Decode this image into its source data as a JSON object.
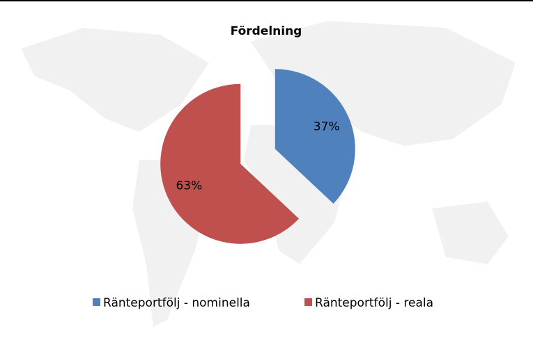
{
  "chart_data": {
    "type": "pie",
    "title": "Fördelning",
    "categories": [
      "Ränteportfölj - nominella",
      "Ränteportfölj - reala"
    ],
    "values": [
      37,
      63
    ],
    "value_labels": [
      "37%",
      "63%"
    ],
    "colors": [
      "#4f81bd",
      "#c0504d"
    ],
    "legend": "bottom"
  }
}
